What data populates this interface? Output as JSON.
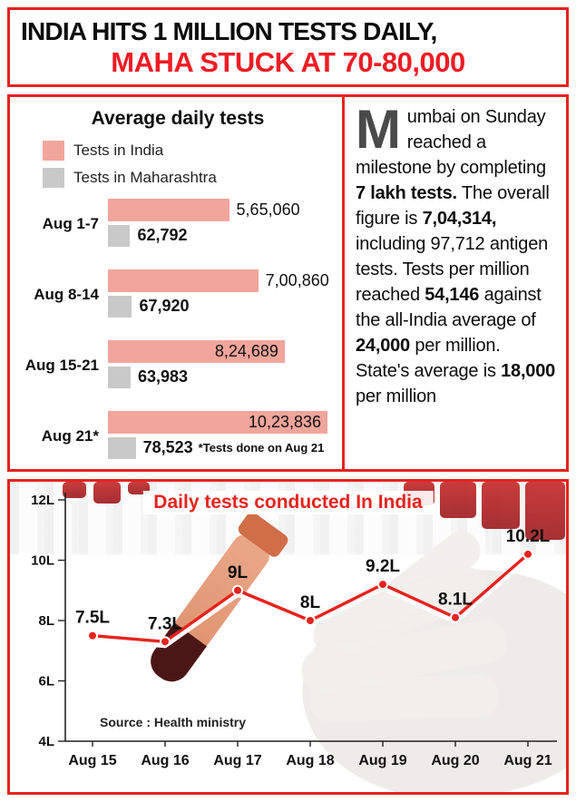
{
  "header": {
    "line1": "INDIA HITS 1 MILLION TESTS DAILY,",
    "line2": "MAHA STUCK AT 70-80,000"
  },
  "article": {
    "dropcap": "M",
    "segments": [
      {
        "t": "umbai on Sunday reached a milestone by completing ",
        "b": 0
      },
      {
        "t": "7 lakh tests.",
        "b": 1
      },
      {
        "t": " The overall figure is ",
        "b": 0
      },
      {
        "t": "7,04,314,",
        "b": 1
      },
      {
        "t": " including 97,712 antigen tests. Tests per million reached ",
        "b": 0
      },
      {
        "t": "54,146",
        "b": 1
      },
      {
        "t": " against the all-India average of ",
        "b": 0
      },
      {
        "t": "24,000",
        "b": 1
      },
      {
        "t": " per million. State's average is ",
        "b": 0
      },
      {
        "t": "18,000",
        "b": 1
      },
      {
        "t": " per million",
        "b": 0
      }
    ]
  },
  "colors": {
    "accent_red": "#e6231e",
    "bar_pink": "#f2a59b",
    "bar_gray": "#c9c9c9"
  },
  "chart_data": [
    {
      "type": "bar",
      "orientation": "horizontal",
      "title": "Average daily tests",
      "categories": [
        "Aug 1-7",
        "Aug 8-14",
        "Aug 15-21",
        "Aug 21*"
      ],
      "series": [
        {
          "name": "Tests in India",
          "color": "#f2a59b",
          "values": [
            565060,
            700860,
            824689,
            1023836
          ],
          "labels": [
            "5,65,060",
            "7,00,860",
            "8,24,689",
            "10,23,836"
          ],
          "label_inside": [
            false,
            false,
            true,
            true
          ]
        },
        {
          "name": "Tests in Maharashtra",
          "color": "#c9c9c9",
          "values": [
            62792,
            67920,
            63983,
            78523
          ],
          "labels": [
            "62,792",
            "67,920",
            "63,983",
            "78,523"
          ],
          "label_inside": [
            false,
            false,
            false,
            false
          ]
        }
      ],
      "note": "*Tests done on Aug 21"
    },
    {
      "type": "line",
      "title": "Daily tests conducted In India",
      "x": [
        "Aug 15",
        "Aug 16",
        "Aug 17",
        "Aug 18",
        "Aug 19",
        "Aug 20",
        "Aug 21"
      ],
      "values": [
        7.5,
        7.3,
        9,
        8,
        9.2,
        8.1,
        10.2
      ],
      "labels": [
        "7.5L",
        "7.3L",
        "9L",
        "8L",
        "9.2L",
        "8.1L",
        "10.2L"
      ],
      "unit": "lakh tests per day",
      "ylim": [
        4,
        12
      ],
      "yticks": [
        "4L",
        "6L",
        "8L",
        "10L",
        "12L"
      ],
      "line_color": "#e6231e",
      "grid": false,
      "legend_position": "none",
      "source": "Source : Health ministry"
    }
  ]
}
